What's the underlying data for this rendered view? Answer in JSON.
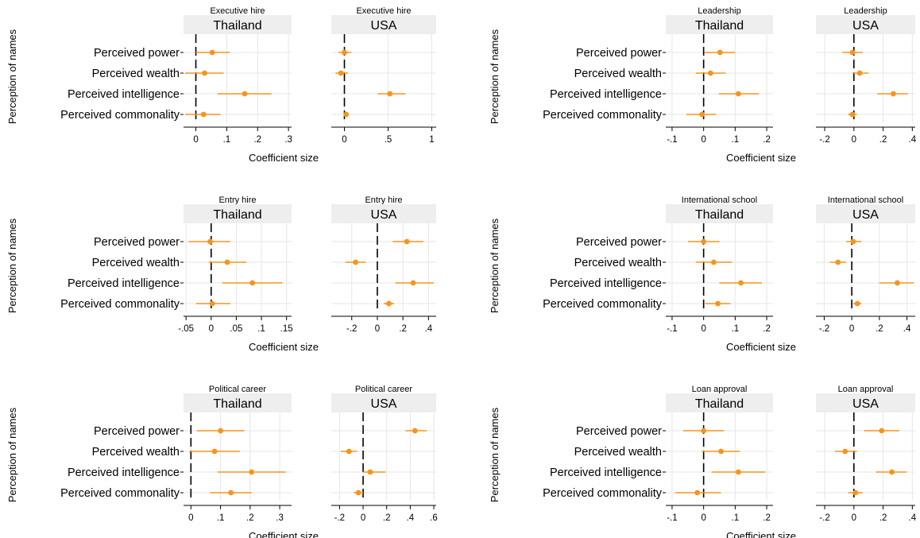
{
  "figure": {
    "y_axis_title": "Perception of names",
    "x_axis_title": "Coefficient size",
    "row_labels": [
      "Perceived power",
      "Perceived wealth",
      "Perceived intelligence",
      "Perceived commonality"
    ],
    "colors": {
      "marker": "#f7941d",
      "ci": "#f7941d",
      "strip": "#eeeeee",
      "grid": "#e6e6e6",
      "zero_line": "#000000"
    }
  },
  "chart_data": [
    {
      "type": "scatter",
      "title": "Executive hire",
      "subtitle": "Thailand",
      "xlabel": "Coefficient size",
      "ylabel": "Perception of names",
      "xlim": [
        -0.04,
        0.31
      ],
      "xticks": [
        {
          "v": 0,
          "label": "0"
        },
        {
          "v": 0.1,
          "label": ".1"
        },
        {
          "v": 0.2,
          "label": ".2"
        },
        {
          "v": 0.3,
          "label": ".3"
        }
      ],
      "categories": [
        "Perceived power",
        "Perceived wealth",
        "Perceived intelligence",
        "Perceived commonality"
      ],
      "estimates": [
        0.053,
        0.028,
        0.158,
        0.025
      ],
      "ci_low": [
        0.0,
        -0.035,
        0.07,
        -0.035
      ],
      "ci_high": [
        0.11,
        0.09,
        0.245,
        0.08
      ]
    },
    {
      "type": "scatter",
      "title": "Executive hire",
      "subtitle": "USA",
      "xlabel": "Coefficient size",
      "ylabel": "Perception of names",
      "xlim": [
        -0.15,
        1.05
      ],
      "xticks": [
        {
          "v": 0,
          "label": "0"
        },
        {
          "v": 0.5,
          "label": ".5"
        },
        {
          "v": 1,
          "label": "1"
        }
      ],
      "categories": [
        "Perceived power",
        "Perceived wealth",
        "Perceived intelligence",
        "Perceived commonality"
      ],
      "estimates": [
        0.0,
        -0.04,
        0.52,
        0.02
      ],
      "ci_low": [
        -0.07,
        -0.1,
        0.38,
        -0.01
      ],
      "ci_high": [
        0.08,
        0.04,
        0.7,
        0.05
      ]
    },
    {
      "type": "scatter",
      "title": "Leadership",
      "subtitle": "Thailand",
      "xlabel": "Coefficient size",
      "ylabel": "Perception of names",
      "xlim": [
        -0.12,
        0.22
      ],
      "xticks": [
        {
          "v": -0.1,
          "label": "-.1"
        },
        {
          "v": 0,
          "label": "0"
        },
        {
          "v": 0.1,
          "label": ".1"
        },
        {
          "v": 0.2,
          "label": ".2"
        }
      ],
      "categories": [
        "Perceived power",
        "Perceived wealth",
        "Perceived intelligence",
        "Perceived commonality"
      ],
      "estimates": [
        0.052,
        0.022,
        0.11,
        -0.005
      ],
      "ci_low": [
        0.003,
        -0.025,
        0.048,
        -0.055
      ],
      "ci_high": [
        0.1,
        0.07,
        0.175,
        0.04
      ]
    },
    {
      "type": "scatter",
      "title": "Leadership",
      "subtitle": "USA",
      "xlim": [
        -0.26,
        0.42
      ],
      "xticks": [
        {
          "v": -0.2,
          "label": "-.2"
        },
        {
          "v": 0,
          "label": "0"
        },
        {
          "v": 0.2,
          "label": ".2"
        },
        {
          "v": 0.4,
          "label": ".4"
        }
      ],
      "categories": [
        "Perceived power",
        "Perceived wealth",
        "Perceived intelligence",
        "Perceived commonality"
      ],
      "estimates": [
        -0.01,
        0.04,
        0.27,
        -0.01
      ],
      "ci_low": [
        -0.08,
        -0.01,
        0.16,
        -0.04
      ],
      "ci_high": [
        0.06,
        0.1,
        0.37,
        0.02
      ]
    },
    {
      "type": "scatter",
      "title": "Entry hire",
      "subtitle": "Thailand",
      "xlabel": "Coefficient size",
      "ylabel": "Perception of names",
      "xlim": [
        -0.055,
        0.16
      ],
      "xticks": [
        {
          "v": -0.05,
          "label": "-.05"
        },
        {
          "v": 0,
          "label": "0"
        },
        {
          "v": 0.05,
          "label": ".05"
        },
        {
          "v": 0.1,
          "label": ".1"
        },
        {
          "v": 0.15,
          "label": ".15"
        }
      ],
      "categories": [
        "Perceived power",
        "Perceived wealth",
        "Perceived intelligence",
        "Perceived commonality"
      ],
      "estimates": [
        -0.002,
        0.032,
        0.082,
        0.002
      ],
      "ci_low": [
        -0.045,
        -0.005,
        0.022,
        -0.03
      ],
      "ci_high": [
        0.038,
        0.07,
        0.142,
        0.038
      ]
    },
    {
      "type": "scatter",
      "title": "Entry hire",
      "subtitle": "USA",
      "xlim": [
        -0.36,
        0.46
      ],
      "xticks": [
        {
          "v": -0.2,
          "label": "-.2"
        },
        {
          "v": 0,
          "label": "0"
        },
        {
          "v": 0.2,
          "label": ".2"
        },
        {
          "v": 0.4,
          "label": ".4"
        }
      ],
      "categories": [
        "Perceived power",
        "Perceived wealth",
        "Perceived intelligence",
        "Perceived commonality"
      ],
      "estimates": [
        0.23,
        -0.17,
        0.28,
        0.09
      ],
      "ci_low": [
        0.12,
        -0.25,
        0.14,
        0.05
      ],
      "ci_high": [
        0.36,
        -0.09,
        0.44,
        0.13
      ]
    },
    {
      "type": "scatter",
      "title": "International school",
      "subtitle": "Thailand",
      "xlabel": "Coefficient size",
      "ylabel": "Perception of names",
      "xlim": [
        -0.12,
        0.22
      ],
      "xticks": [
        {
          "v": -0.1,
          "label": "-.1"
        },
        {
          "v": 0,
          "label": "0"
        },
        {
          "v": 0.1,
          "label": ".1"
        },
        {
          "v": 0.2,
          "label": ".2"
        }
      ],
      "categories": [
        "Perceived power",
        "Perceived wealth",
        "Perceived intelligence",
        "Perceived commonality"
      ],
      "estimates": [
        0.0,
        0.032,
        0.118,
        0.045
      ],
      "ci_low": [
        -0.05,
        -0.025,
        0.05,
        0.005
      ],
      "ci_high": [
        0.05,
        0.09,
        0.185,
        0.085
      ]
    },
    {
      "type": "scatter",
      "title": "International school",
      "subtitle": "USA",
      "xlim": [
        -0.26,
        0.46
      ],
      "xticks": [
        {
          "v": -0.2,
          "label": "-.2"
        },
        {
          "v": 0,
          "label": "0"
        },
        {
          "v": 0.2,
          "label": ".2"
        },
        {
          "v": 0.4,
          "label": ".4"
        }
      ],
      "categories": [
        "Perceived power",
        "Perceived wealth",
        "Perceived intelligence",
        "Perceived commonality"
      ],
      "estimates": [
        0.01,
        -0.1,
        0.33,
        0.04
      ],
      "ci_low": [
        -0.04,
        -0.16,
        0.2,
        0.01
      ],
      "ci_high": [
        0.07,
        -0.04,
        0.45,
        0.07
      ]
    },
    {
      "type": "scatter",
      "title": "Political career",
      "subtitle": "Thailand",
      "xlabel": "Coefficient size",
      "ylabel": "Perception of names",
      "xlim": [
        -0.025,
        0.34
      ],
      "xticks": [
        {
          "v": 0,
          "label": "0"
        },
        {
          "v": 0.1,
          "label": ".1"
        },
        {
          "v": 0.2,
          "label": ".2"
        },
        {
          "v": 0.3,
          "label": ".3"
        }
      ],
      "categories": [
        "Perceived power",
        "Perceived wealth",
        "Perceived intelligence",
        "Perceived commonality"
      ],
      "estimates": [
        0.1,
        0.08,
        0.205,
        0.135
      ],
      "ci_low": [
        0.02,
        -0.005,
        0.09,
        0.065
      ],
      "ci_high": [
        0.18,
        0.165,
        0.32,
        0.205
      ]
    },
    {
      "type": "scatter",
      "title": "Political career",
      "subtitle": "USA",
      "xlim": [
        -0.27,
        0.62
      ],
      "xticks": [
        {
          "v": -0.2,
          "label": "-.2"
        },
        {
          "v": 0,
          "label": "0"
        },
        {
          "v": 0.2,
          "label": ".2"
        },
        {
          "v": 0.4,
          "label": ".4"
        },
        {
          "v": 0.6,
          "label": ".6"
        }
      ],
      "categories": [
        "Perceived power",
        "Perceived wealth",
        "Perceived intelligence",
        "Perceived commonality"
      ],
      "estimates": [
        0.44,
        -0.12,
        0.06,
        -0.04
      ],
      "ci_low": [
        0.36,
        -0.19,
        0.0,
        -0.08
      ],
      "ci_high": [
        0.54,
        -0.05,
        0.19,
        0.0
      ]
    },
    {
      "type": "scatter",
      "title": "Loan approval",
      "subtitle": "Thailand",
      "xlabel": "Coefficient size",
      "ylabel": "Perception of names",
      "xlim": [
        -0.12,
        0.22
      ],
      "xticks": [
        {
          "v": -0.1,
          "label": "-.1"
        },
        {
          "v": 0,
          "label": "0"
        },
        {
          "v": 0.1,
          "label": ".1"
        },
        {
          "v": 0.2,
          "label": ".2"
        }
      ],
      "categories": [
        "Perceived power",
        "Perceived wealth",
        "Perceived intelligence",
        "Perceived commonality"
      ],
      "estimates": [
        0.0,
        0.055,
        0.11,
        -0.02
      ],
      "ci_low": [
        -0.065,
        -0.005,
        0.025,
        -0.09
      ],
      "ci_high": [
        0.065,
        0.115,
        0.195,
        0.055
      ]
    },
    {
      "type": "scatter",
      "title": "Loan approval",
      "subtitle": "USA",
      "xlim": [
        -0.26,
        0.42
      ],
      "xticks": [
        {
          "v": -0.2,
          "label": "-.2"
        },
        {
          "v": 0,
          "label": "0"
        },
        {
          "v": 0.2,
          "label": ".2"
        },
        {
          "v": 0.4,
          "label": ".4"
        }
      ],
      "categories": [
        "Perceived power",
        "Perceived wealth",
        "Perceived intelligence",
        "Perceived commonality"
      ],
      "estimates": [
        0.19,
        -0.06,
        0.26,
        0.01
      ],
      "ci_low": [
        0.07,
        -0.13,
        0.15,
        -0.04
      ],
      "ci_high": [
        0.31,
        0.02,
        0.36,
        0.06
      ]
    }
  ]
}
